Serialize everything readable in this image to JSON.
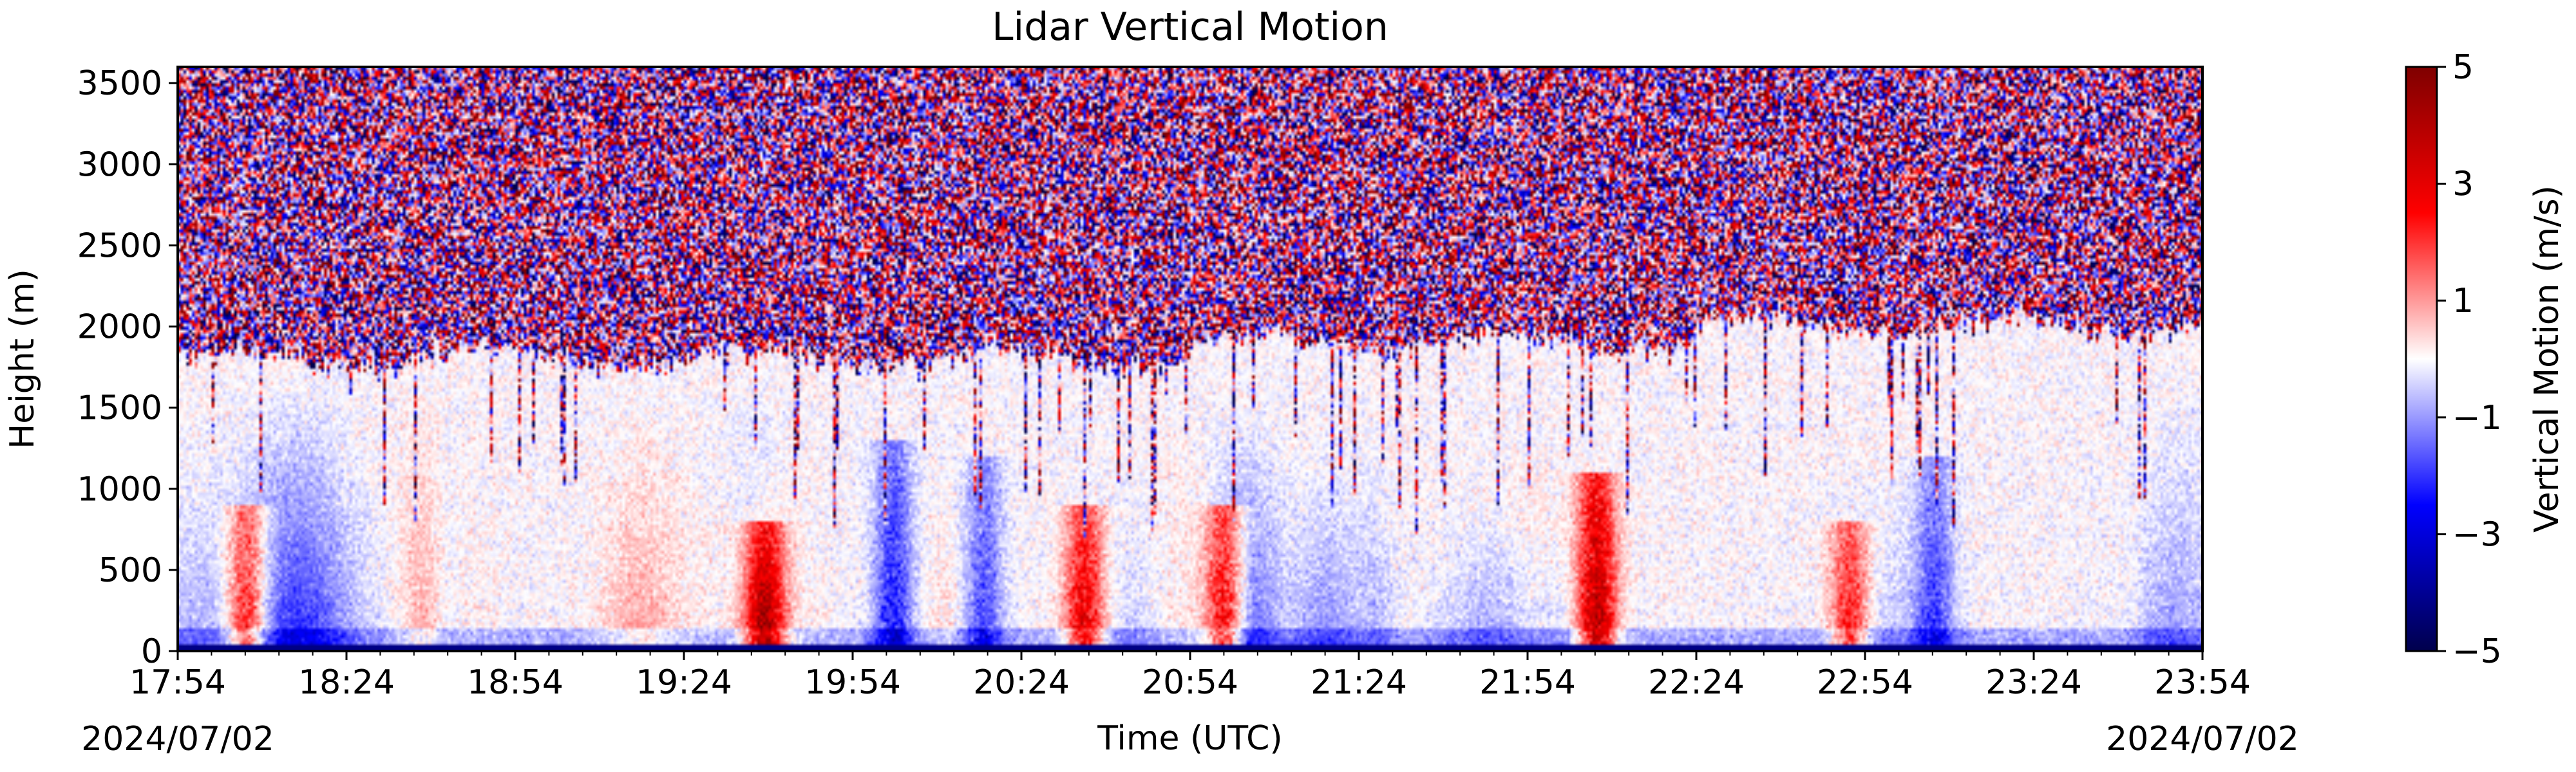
{
  "chart_data": {
    "type": "heatmap",
    "title": "Lidar Vertical Motion",
    "xlabel": "Time (UTC)",
    "ylabel": "Height (m)",
    "xlim": [
      "17:54",
      "23:54"
    ],
    "ylim": [
      0,
      3600
    ],
    "x_ticks": [
      "17:54",
      "18:24",
      "18:54",
      "19:24",
      "19:54",
      "20:24",
      "20:54",
      "21:24",
      "21:54",
      "22:24",
      "22:54",
      "23:24",
      "23:54"
    ],
    "y_ticks": [
      0,
      500,
      1000,
      1500,
      2000,
      2500,
      3000,
      3500
    ],
    "date_left": "2024/07/02",
    "date_right": "2024/07/02",
    "colorbar": {
      "label": "Vertical Motion (m/s)",
      "ticks": [
        5,
        3,
        1,
        -1,
        -3,
        -5
      ],
      "tick_labels": [
        "5",
        "3",
        "1",
        "−1",
        "−3",
        "−5"
      ],
      "range": [
        -5,
        5
      ],
      "colormap": "seismic",
      "colors": [
        "#00004c",
        "#0000ff",
        "#ffffff",
        "#ff0000",
        "#7f0000"
      ]
    },
    "noisy_layer_top_m": 3600,
    "signal_top_m": [
      1800,
      1900,
      2000
    ],
    "updraft_events": [
      {
        "time": "18:06",
        "top_m": 900,
        "strength": 3.5
      },
      {
        "time": "19:38",
        "top_m": 800,
        "strength": 4.5
      },
      {
        "time": "20:35",
        "top_m": 900,
        "strength": 3.5
      },
      {
        "time": "21:00",
        "top_m": 900,
        "strength": 4.0
      },
      {
        "time": "22:06",
        "top_m": 1100,
        "strength": 4.5
      },
      {
        "time": "22:51",
        "top_m": 800,
        "strength": 3.0
      }
    ],
    "downdraft_events": [
      {
        "time": "20:01",
        "top_m": 1300,
        "strength": -2.5
      },
      {
        "time": "20:17",
        "top_m": 1200,
        "strength": -2.0
      },
      {
        "time": "23:06",
        "top_m": 1200,
        "strength": -2.0
      }
    ]
  }
}
